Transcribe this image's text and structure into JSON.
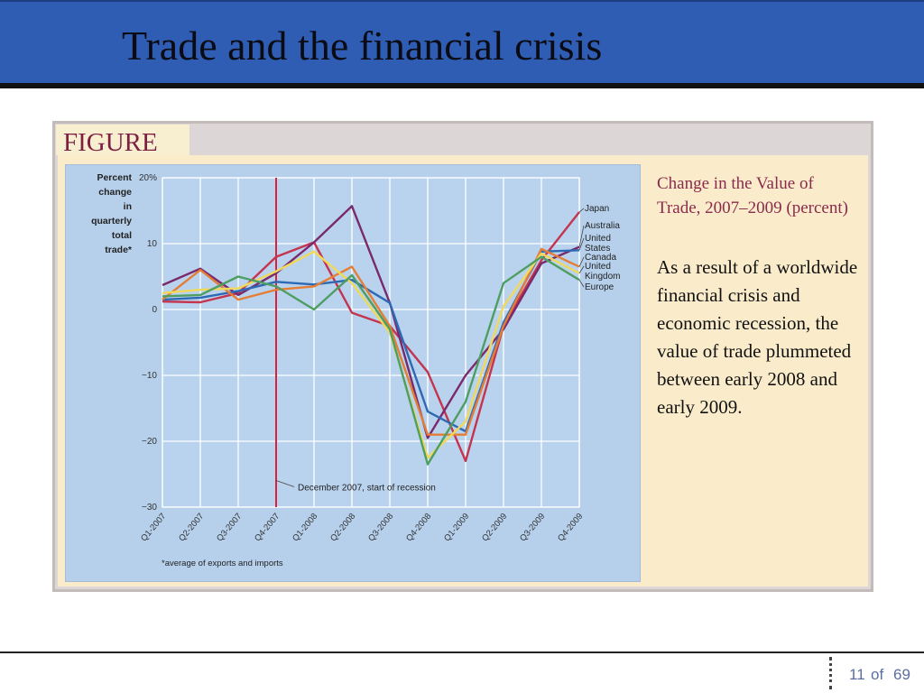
{
  "slide": {
    "title": "Trade and the financial crisis",
    "figure_label": "FIGURE",
    "caption_title": "Change in the Value of Trade, 2007–2009 (percent)",
    "caption_body": "As a result of a worldwide financial crisis and economic recession, the value of trade plummeted between early 2008 and early 2009.",
    "page_number": "11",
    "page_of": "of",
    "page_total": "69"
  },
  "chart_data": {
    "type": "line",
    "ylabel_lines": [
      "Percent",
      "change",
      "in",
      "quarterly",
      "total",
      "trade*"
    ],
    "footnote": "*average of exports and imports",
    "annotation": "December 2007, start of recession",
    "annotation_x_index": 3,
    "categories": [
      "Q1-2007",
      "Q2-2007",
      "Q3-2007",
      "Q4-2007",
      "Q1-2008",
      "Q2-2008",
      "Q3-2008",
      "Q4-2008",
      "Q1-2009",
      "Q2-2009",
      "Q3-2009",
      "Q4-2009"
    ],
    "ylim": [
      -30,
      20
    ],
    "yticks": [
      20,
      10,
      0,
      -10,
      -20,
      -30
    ],
    "ytick_labels": [
      "20%",
      "10",
      "0",
      "−10",
      "−20",
      "−30"
    ],
    "grid": true,
    "series": [
      {
        "name": "Japan",
        "color": "#c4344f",
        "values": [
          1.2,
          1.1,
          2.5,
          8.0,
          10.2,
          -0.5,
          -2.5,
          -9.5,
          -23.0,
          -2.5,
          7.5,
          14.8
        ]
      },
      {
        "name": "Australia",
        "color": "#7a2a6c",
        "values": [
          3.7,
          6.2,
          2.2,
          5.5,
          10.2,
          15.7,
          1.0,
          -19.5,
          -10.0,
          -3.0,
          7.0,
          9.5
        ]
      },
      {
        "name": "United States",
        "color": "#2d6ab3",
        "values": [
          1.5,
          1.8,
          2.8,
          4.2,
          3.8,
          4.5,
          1.0,
          -15.5,
          -18.5,
          -2.0,
          8.8,
          9.0
        ]
      },
      {
        "name": "Canada",
        "color": "#e57e35",
        "values": [
          1.5,
          6.0,
          1.5,
          3.0,
          3.5,
          6.5,
          -2.5,
          -19.0,
          -19.0,
          -2.5,
          9.2,
          6.5
        ]
      },
      {
        "name": "United Kingdom",
        "color": "#f0d95a",
        "values": [
          2.5,
          3.0,
          3.2,
          5.8,
          8.8,
          4.0,
          -3.5,
          -22.5,
          -17.0,
          0.5,
          8.5,
          5.5
        ]
      },
      {
        "name": "Europe",
        "color": "#4f9e61",
        "values": [
          2.0,
          2.2,
          5.0,
          3.5,
          0.0,
          5.2,
          -3.0,
          -23.5,
          -14.0,
          4.0,
          8.0,
          4.5
        ]
      }
    ],
    "legend": [
      "Japan",
      "Australia",
      "United States",
      "Canada",
      "United Kingdom",
      "Europe"
    ],
    "legend_placement": "right"
  }
}
